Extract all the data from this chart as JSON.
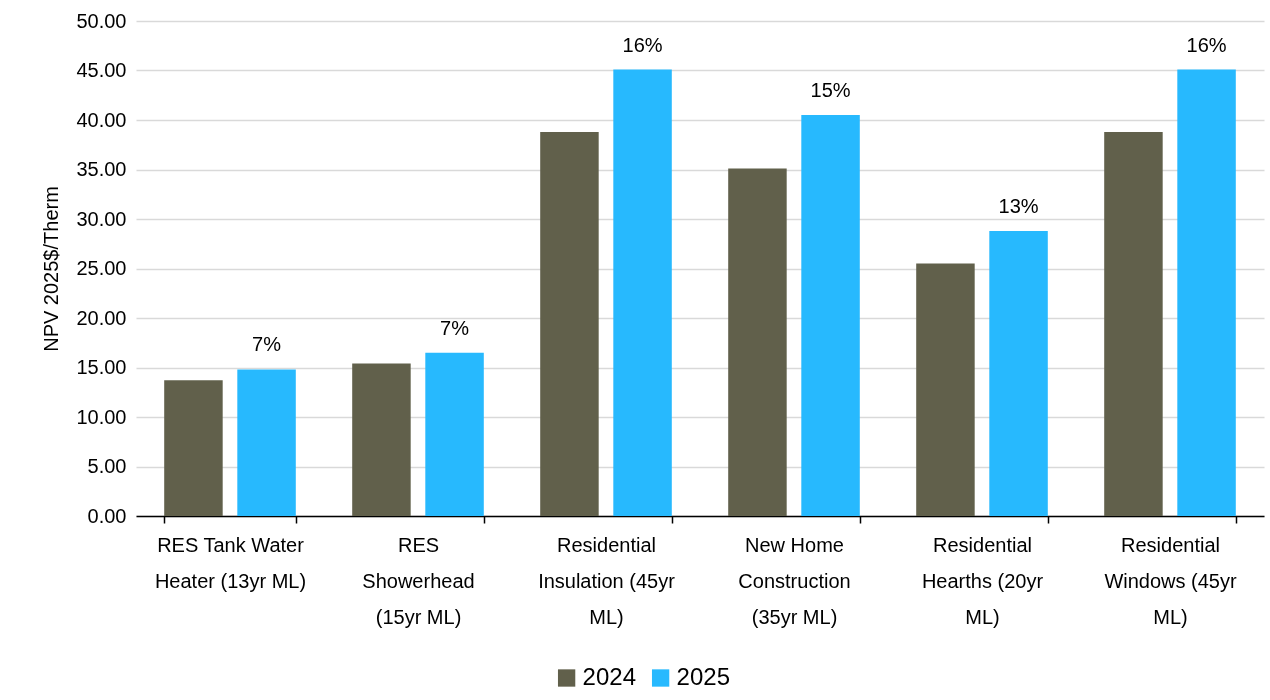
{
  "chart_data": {
    "type": "bar",
    "ylabel": "NPV 2025$/Therm",
    "categories": [
      "RES Tank Water Heater (13yr ML)",
      "RES Showerhead (15yr ML)",
      "Residential Insulation (45yr ML)",
      "New Home Construction (35yr ML)",
      "Residential Hearths (20yr ML)",
      "Residential Windows (45yr ML)"
    ],
    "series": [
      {
        "name": "2024",
        "color": "#61604b",
        "values": [
          13.7,
          15.4,
          38.8,
          35.1,
          25.5,
          38.8
        ]
      },
      {
        "name": "2025",
        "color": "#27b9fe",
        "values": [
          14.8,
          16.5,
          45.1,
          40.5,
          28.8,
          45.1
        ]
      }
    ],
    "annotations": [
      "7%",
      "7%",
      "16%",
      "15%",
      "13%",
      "16%"
    ],
    "ylim": [
      0,
      50
    ],
    "yticks": [
      {
        "value": 0,
        "label": "0.00"
      },
      {
        "value": 5,
        "label": "5.00"
      },
      {
        "value": 10,
        "label": "10.00"
      },
      {
        "value": 15,
        "label": "15.00"
      },
      {
        "value": 20,
        "label": "20.00"
      },
      {
        "value": 25,
        "label": "25.00"
      },
      {
        "value": 30,
        "label": "30.00"
      },
      {
        "value": 35,
        "label": "35.00"
      },
      {
        "value": 40,
        "label": "40.00"
      },
      {
        "value": 45,
        "label": "45.00"
      },
      {
        "value": 50,
        "label": "50.00"
      }
    ],
    "grid": "y",
    "legend": "bottom"
  }
}
